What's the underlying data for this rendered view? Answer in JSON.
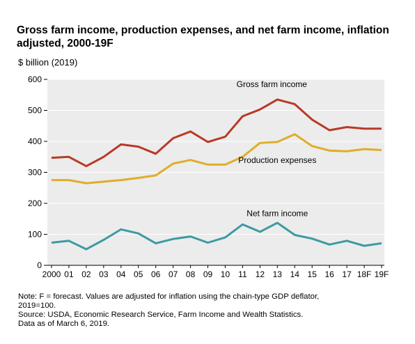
{
  "chart_data": {
    "type": "line",
    "title": "Gross farm income, production expenses, and net farm income, inflation adjusted, 2000-19F",
    "ylabel": "$ billion (2019)",
    "xlabel": "",
    "ylim": [
      0,
      600
    ],
    "yticks": [
      0,
      100,
      200,
      300,
      400,
      500,
      600
    ],
    "grid": true,
    "categories": [
      "2000",
      "01",
      "02",
      "03",
      "04",
      "05",
      "06",
      "07",
      "08",
      "09",
      "10",
      "11",
      "12",
      "13",
      "14",
      "15",
      "16",
      "17",
      "18F",
      "19F"
    ],
    "series": [
      {
        "name": "Gross farm income",
        "color": "#b83a25",
        "values": [
          347,
          350,
          320,
          350,
          390,
          383,
          360,
          410,
          432,
          398,
          415,
          481,
          503,
          535,
          520,
          470,
          436,
          446,
          441,
          441
        ]
      },
      {
        "name": "Production expenses",
        "color": "#e0ad29",
        "values": [
          275,
          275,
          265,
          270,
          275,
          282,
          290,
          328,
          340,
          325,
          325,
          350,
          395,
          398,
          423,
          385,
          370,
          368,
          375,
          372
        ]
      },
      {
        "name": "Net farm income",
        "color": "#3d9aa2",
        "values": [
          73,
          79,
          52,
          82,
          116,
          103,
          71,
          85,
          93,
          73,
          90,
          132,
          108,
          137,
          98,
          86,
          67,
          79,
          63,
          71
        ]
      }
    ]
  },
  "notes": [
    "Note: F = forecast. Values are adjusted for inflation using the chain-type GDP deflator,",
    "2019=100.",
    "Source: USDA, Economic Research Service, Farm Income and Wealth Statistics.",
    "Data as of March 6, 2019."
  ]
}
